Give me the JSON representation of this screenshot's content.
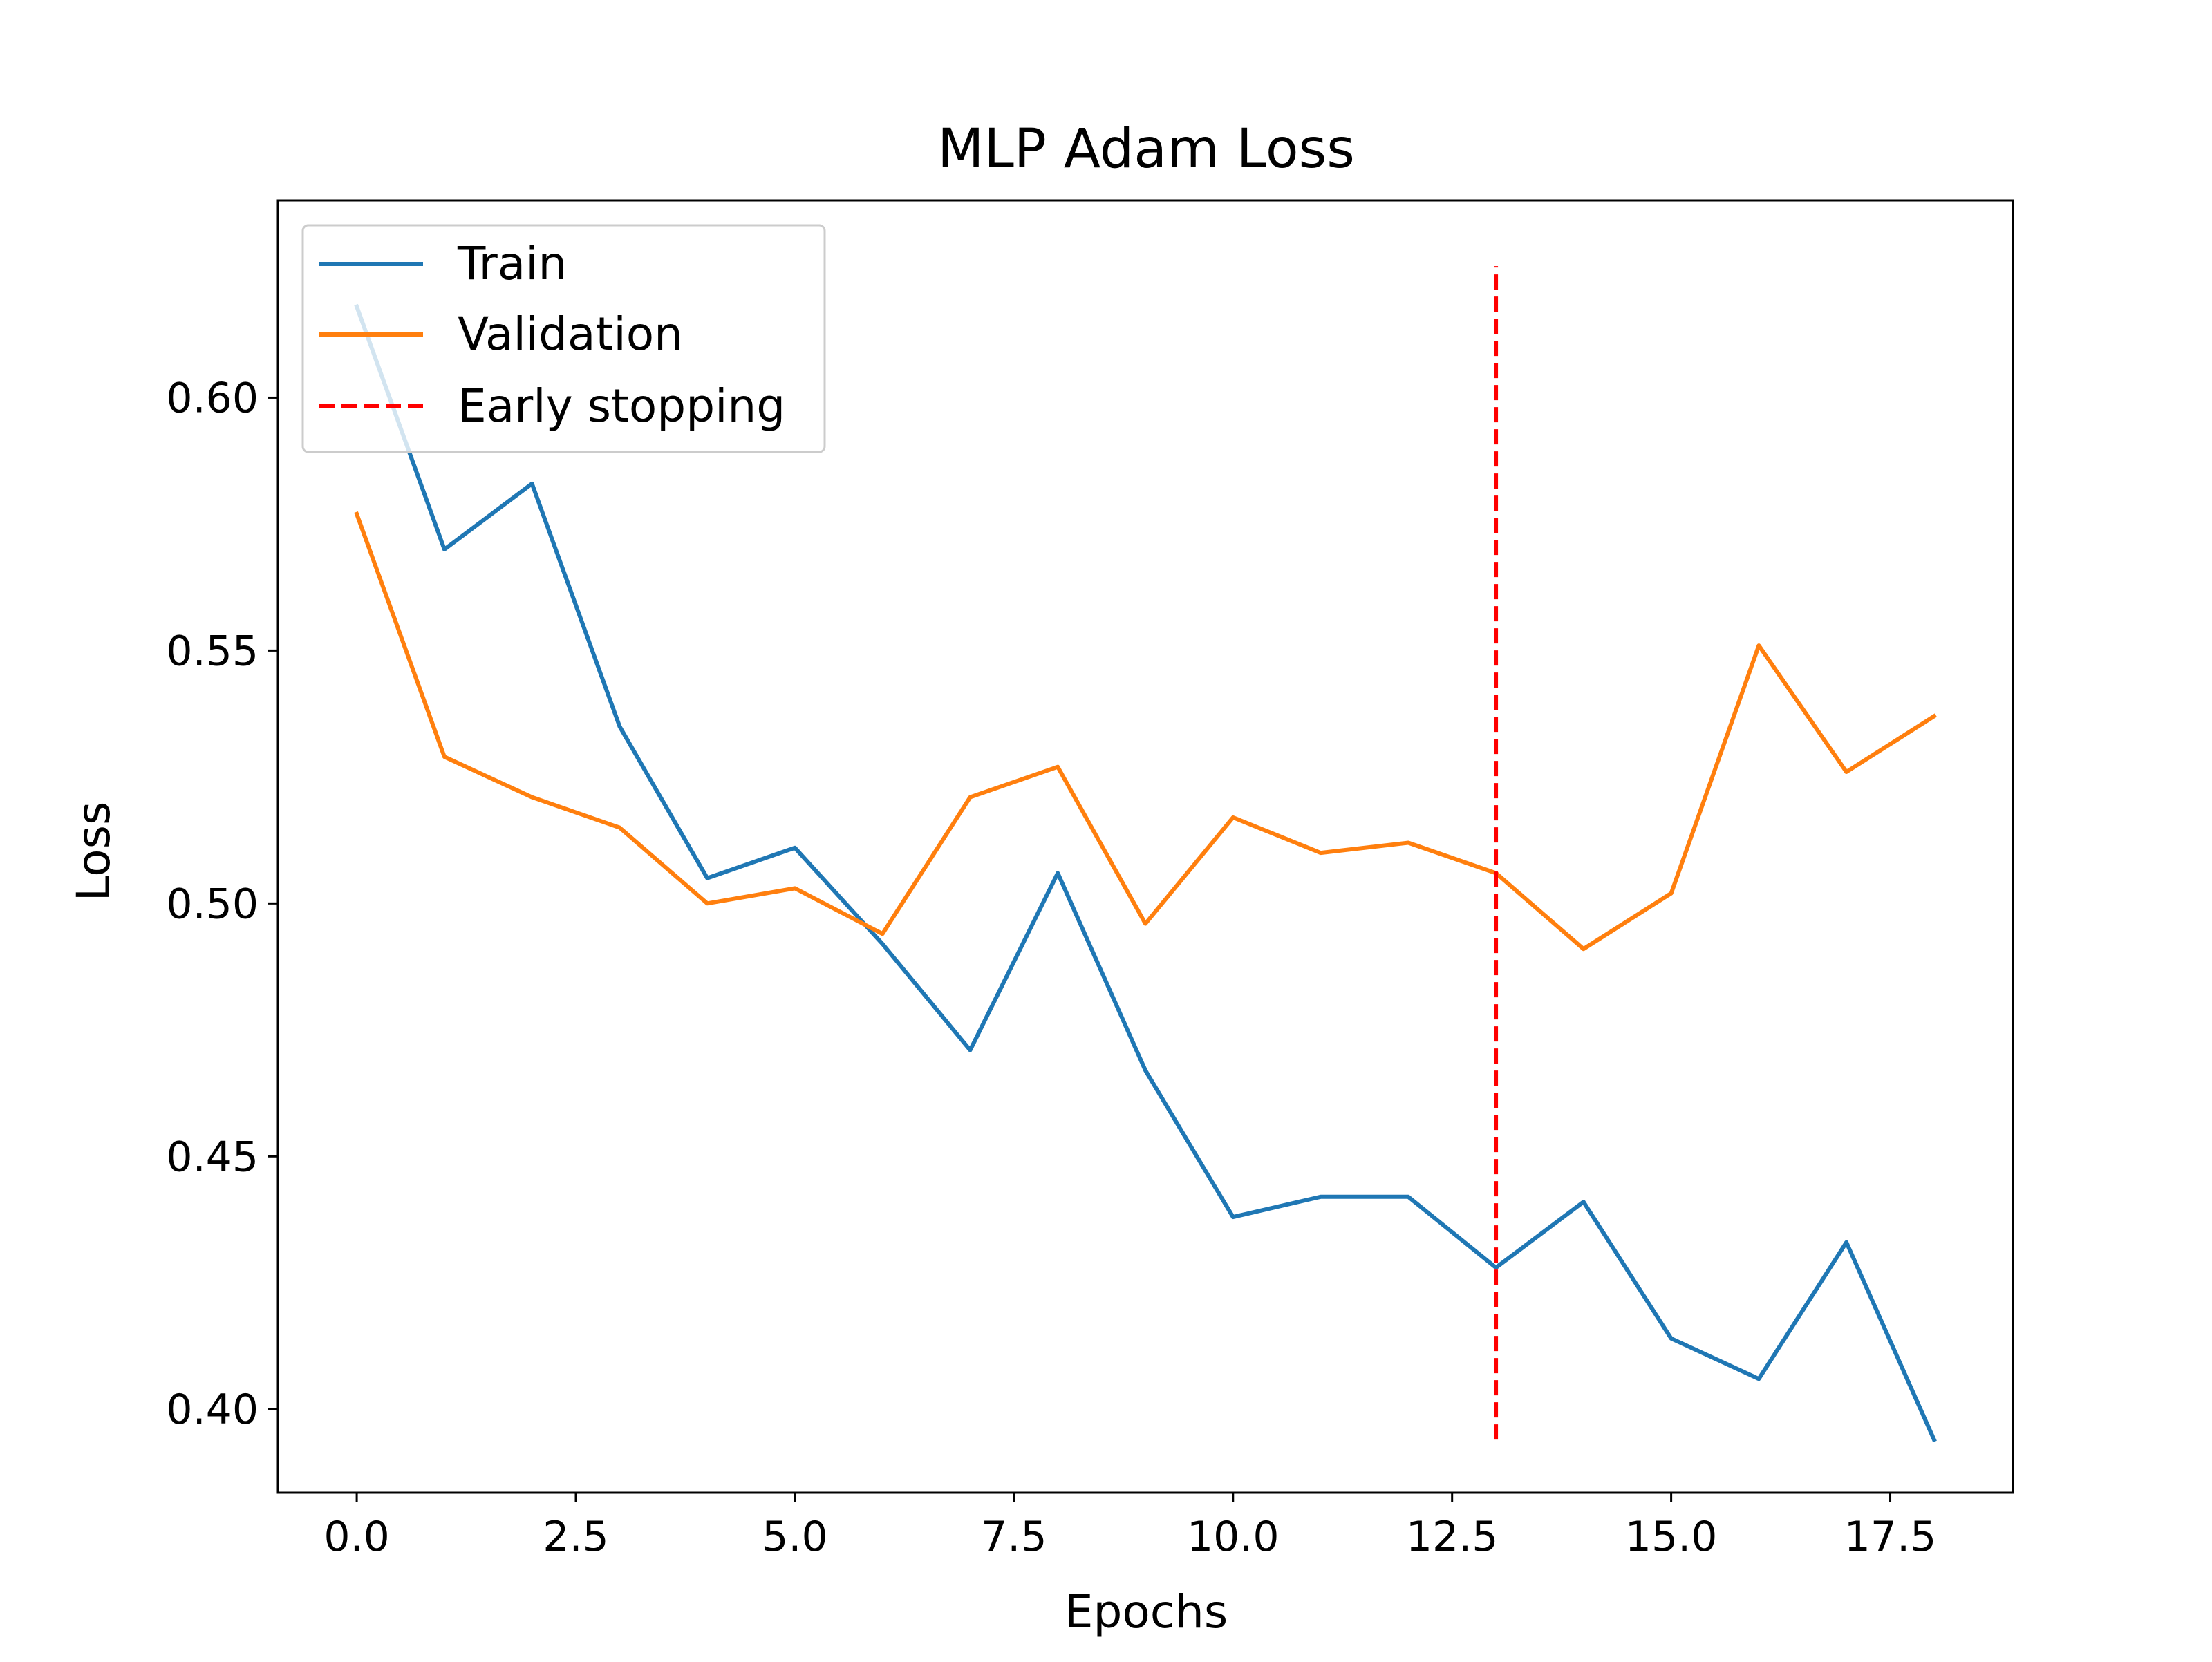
{
  "chart_data": {
    "type": "line",
    "title": "MLP Adam Loss",
    "xlabel": "Epochs",
    "ylabel": "Loss",
    "x": [
      0,
      1,
      2,
      3,
      4,
      5,
      6,
      7,
      8,
      9,
      10,
      11,
      12,
      13,
      14,
      15,
      16,
      17,
      18
    ],
    "xlim": [
      -0.9,
      18.9
    ],
    "ylim": [
      0.3835,
      0.639
    ],
    "xticks": [
      0.0,
      2.5,
      5.0,
      7.5,
      10.0,
      12.5,
      15.0,
      17.5
    ],
    "xtick_labels": [
      "0.0",
      "2.5",
      "5.0",
      "7.5",
      "10.0",
      "12.5",
      "15.0",
      "17.5"
    ],
    "yticks": [
      0.4,
      0.45,
      0.5,
      0.55,
      0.6
    ],
    "ytick_labels": [
      "0.40",
      "0.45",
      "0.50",
      "0.55",
      "0.60"
    ],
    "grid": false,
    "legend_position": "top-left",
    "series": [
      {
        "name": "Train",
        "color": "#1f77b4",
        "style": "solid",
        "values": [
          0.618,
          0.57,
          0.583,
          0.535,
          0.505,
          0.511,
          0.492,
          0.471,
          0.506,
          0.467,
          0.438,
          0.442,
          0.442,
          0.428,
          0.441,
          0.414,
          0.406,
          0.433,
          0.394
        ]
      },
      {
        "name": "Validation",
        "color": "#ff7f0e",
        "style": "solid",
        "values": [
          0.577,
          0.529,
          0.521,
          0.515,
          0.5,
          0.503,
          0.494,
          0.521,
          0.527,
          0.496,
          0.517,
          0.51,
          0.512,
          0.506,
          0.491,
          0.502,
          0.551,
          0.526,
          0.537
        ]
      }
    ],
    "vlines": [
      {
        "name": "Early stopping",
        "x": 13,
        "y_range": [
          0.394,
          0.626
        ],
        "color": "#ff0000",
        "style": "dashed"
      }
    ]
  }
}
